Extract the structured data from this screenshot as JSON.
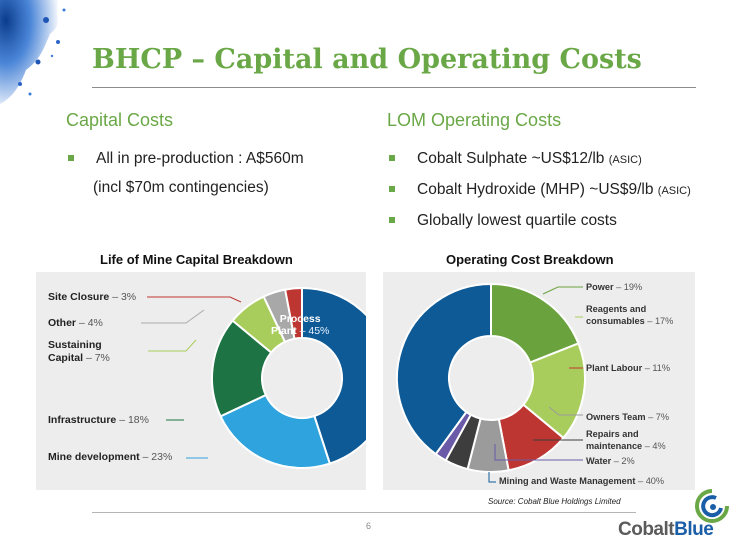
{
  "slide": {
    "title": "BHCP – Capital and Operating Costs",
    "page_number": "6",
    "source": "Source: Cobalt Blue Holdings Limited",
    "logo": {
      "part1": "Cobalt",
      "part2": "Blue"
    }
  },
  "capital_costs": {
    "heading": "Capital Costs",
    "bullets": [
      {
        "line1": "All in pre-production : A$560m",
        "line2": "(incl $70m contingencies)"
      }
    ]
  },
  "operating_costs": {
    "heading": "LOM Operating Costs",
    "bullets": [
      {
        "text": "Cobalt Sulphate ~US$12/lb",
        "note": "(ASIC)"
      },
      {
        "text": "Cobalt Hydroxide (MHP) ~US$9/lb",
        "note": "(ASIC)"
      },
      {
        "text": "Globally lowest quartile costs",
        "note": ""
      }
    ]
  },
  "colors": {
    "accent_green": "#6aa847",
    "dark_blue": "#0d5a96",
    "light_blue": "#2ea3dd",
    "dark_green": "#1d7344",
    "grass_green": "#6aa33e",
    "light_green": "#a9cd5c",
    "gray": "#9b9b9b",
    "dark_gray": "#3d3d3d",
    "red": "#be3631",
    "purple": "#6a5aa8"
  },
  "chart_data": [
    {
      "type": "pie",
      "donut": true,
      "title": "Life of Mine Capital Breakdown",
      "slices": [
        {
          "name": "Process Plant",
          "value": 45,
          "color": "#0d5a96"
        },
        {
          "name": "Mine development",
          "value": 23,
          "color": "#2ea3dd"
        },
        {
          "name": "Infrastructure",
          "value": 18,
          "color": "#1d7344"
        },
        {
          "name": "Sustaining Capital",
          "value": 7,
          "color": "#a9cd5c"
        },
        {
          "name": "Other",
          "value": 4,
          "color": "#a8a8a8"
        },
        {
          "name": "Site Closure",
          "value": 3,
          "color": "#be3631"
        }
      ],
      "labels": [
        {
          "name": "Site Closure",
          "pct": "– 3%"
        },
        {
          "name": "Other",
          "pct": "– 4%"
        },
        {
          "name": "Sustaining",
          "name2": "Capital",
          "pct": "– 7%"
        },
        {
          "name": "Infrastructure",
          "pct": "– 18%"
        },
        {
          "name": "Mine development",
          "pct": "– 23%"
        },
        {
          "name": "Process",
          "name2": "Plant",
          "pct": "– 45%"
        }
      ]
    },
    {
      "type": "pie",
      "donut": true,
      "title": "Operating Cost Breakdown",
      "slices": [
        {
          "name": "Power",
          "value": 19,
          "color": "#6aa33e"
        },
        {
          "name": "Reagents and consumables",
          "value": 17,
          "color": "#a9cd5c"
        },
        {
          "name": "Plant Labour",
          "value": 11,
          "color": "#be3631"
        },
        {
          "name": "Owners Team",
          "value": 7,
          "color": "#9b9b9b"
        },
        {
          "name": "Repairs and maintenance",
          "value": 4,
          "color": "#3d3d3d"
        },
        {
          "name": "Water",
          "value": 2,
          "color": "#6a5aa8"
        },
        {
          "name": "Mining and Waste Management",
          "value": 40,
          "color": "#0d5a96"
        }
      ],
      "labels": [
        {
          "name": "Power",
          "pct": "– 19%"
        },
        {
          "name": "Reagents and",
          "name2": "consumables",
          "pct": "– 17%"
        },
        {
          "name": "Plant Labour",
          "pct": "– 11%"
        },
        {
          "name": "Owners Team",
          "pct": "– 7%"
        },
        {
          "name": "Repairs and",
          "name2": "maintenance",
          "pct": "– 4%"
        },
        {
          "name": "Water",
          "pct": "– 2%"
        },
        {
          "name": "Mining and Waste Management",
          "pct": "– 40%"
        }
      ]
    }
  ]
}
